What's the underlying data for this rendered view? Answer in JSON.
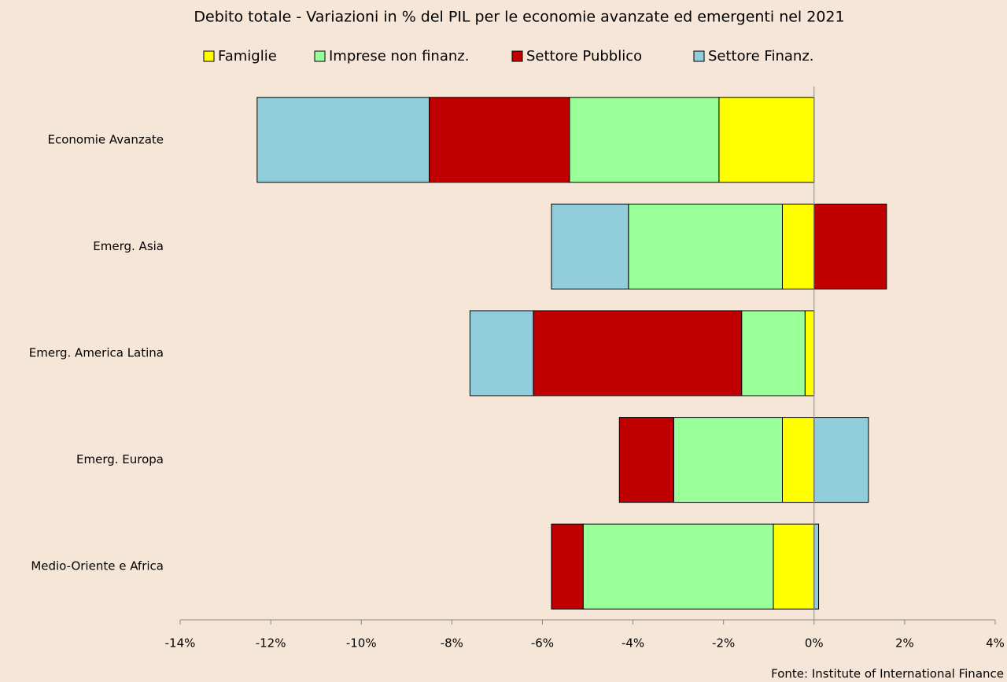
{
  "chart_data": {
    "type": "stacked_barh",
    "title": "Debito totale - Variazioni in % del PIL per le economie avanzate ed emergenti nel 2021",
    "source": "Fonte: Institute of International Finance",
    "categories": [
      "Economie Avanzate",
      "Emerg. Asia",
      "Emerg. America Latina",
      "Emerg. Europa",
      "Medio-Oriente e Africa"
    ],
    "series": [
      {
        "name": "Famiglie",
        "color": "#ffff00",
        "values": [
          -2.1,
          -0.7,
          -0.2,
          -0.7,
          -0.9
        ]
      },
      {
        "name": "Imprese non finanz.",
        "color": "#99ff99",
        "values": [
          -3.3,
          -3.4,
          -1.4,
          -2.4,
          -4.2
        ]
      },
      {
        "name": "Settore Pubblico",
        "color": "#c00000",
        "values": [
          -3.1,
          1.6,
          -4.6,
          -1.2,
          -0.7
        ]
      },
      {
        "name": "Settore Finanz.",
        "color": "#92cddc",
        "values": [
          -3.8,
          -1.7,
          -1.4,
          1.2,
          0.1
        ]
      }
    ],
    "xlim": [
      -14,
      4
    ],
    "xticks": [
      {
        "value": -14,
        "label": "-14%"
      },
      {
        "value": -12,
        "label": "-12%"
      },
      {
        "value": -10,
        "label": "-10%"
      },
      {
        "value": -8,
        "label": "-8%"
      },
      {
        "value": -6,
        "label": "-6%"
      },
      {
        "value": -4,
        "label": "-4%"
      },
      {
        "value": -2,
        "label": "-2%"
      },
      {
        "value": 0,
        "label": "0%"
      },
      {
        "value": 2,
        "label": "2%"
      },
      {
        "value": 4,
        "label": "4%"
      }
    ],
    "legend": "top"
  }
}
